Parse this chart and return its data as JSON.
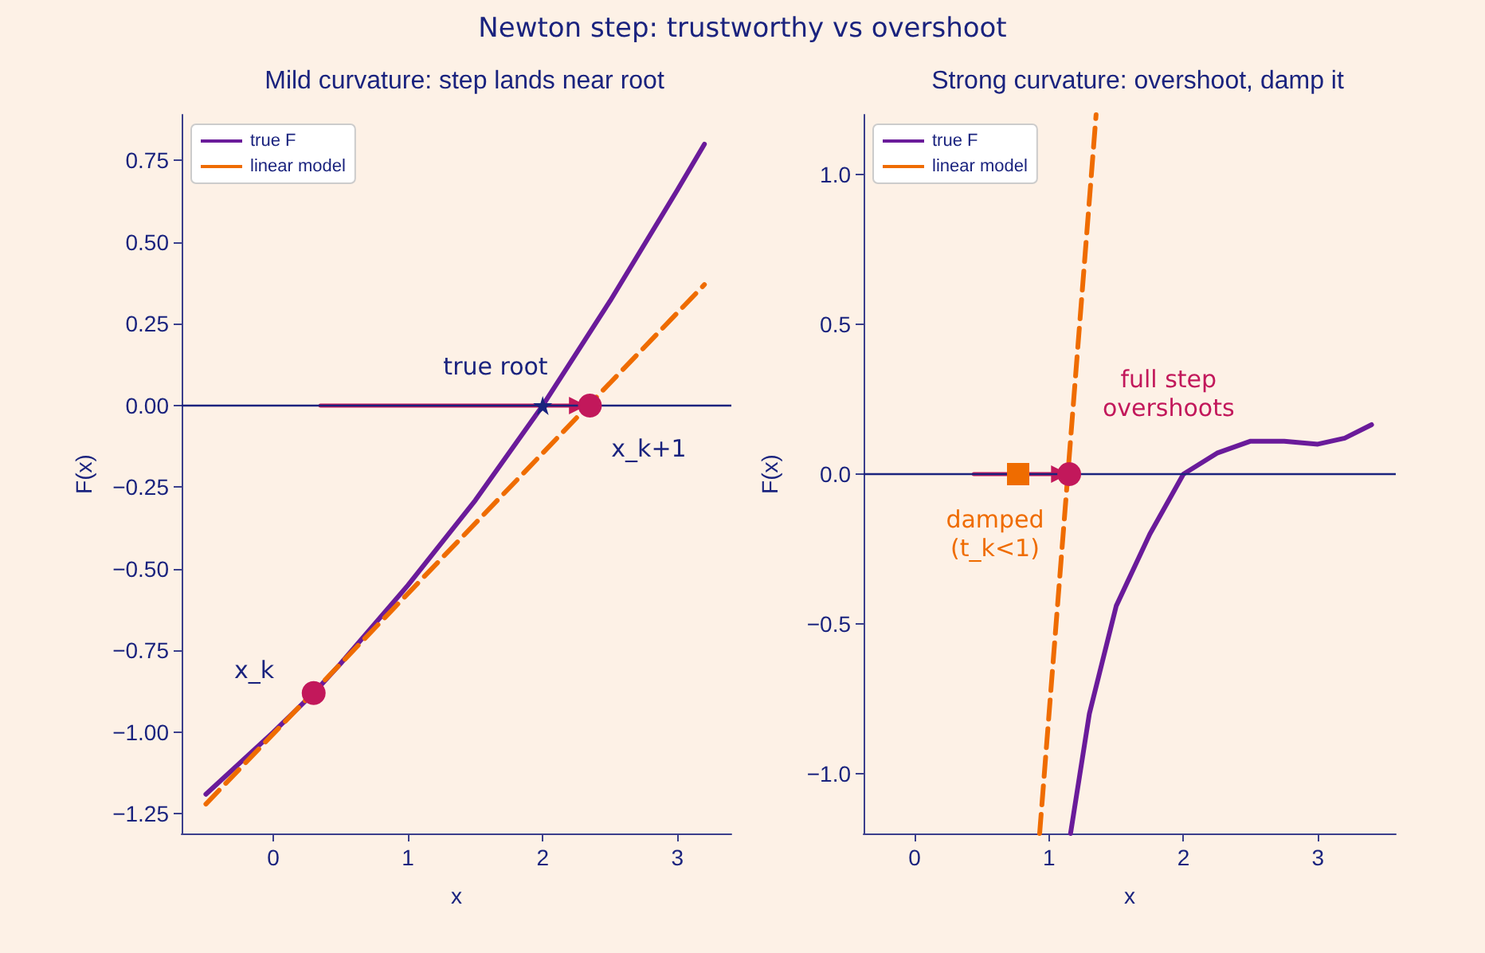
{
  "chart_data": [
    {
      "type": "line",
      "title": "Mild curvature: step lands near root",
      "xlabel": "x",
      "ylabel": "F(x)",
      "legend": "top left",
      "grid": false,
      "xlim": [
        -0.68,
        3.4
      ],
      "xticks": [
        0,
        1,
        2,
        3
      ],
      "ylim": [
        -1.31,
        0.89
      ],
      "yticks": [
        {
          "value": -1.25,
          "label": "−1.25"
        },
        {
          "value": -1,
          "label": "−1.00"
        },
        {
          "value": -0.75,
          "label": "−0.75"
        },
        {
          "value": -0.5,
          "label": "−0.50"
        },
        {
          "value": -0.25,
          "label": "−0.25"
        },
        {
          "value": 0,
          "label": "0.00"
        },
        {
          "value": 0.25,
          "label": "0.25"
        },
        {
          "value": 0.5,
          "label": "0.50"
        },
        {
          "value": 0.75,
          "label": "0.75"
        }
      ],
      "ref_lines": [
        {
          "axis": "y",
          "value": 0,
          "color": "#1a237e"
        }
      ],
      "annotations": [
        "Newton step: trustworthy vs overshoot",
        "true root",
        "x_k",
        "x_k+1"
      ],
      "series": [
        {
          "name": "true F",
          "color": "#6a1b9a",
          "line_style": "solid",
          "marker": "none",
          "x": [
            -0.5,
            0,
            0.3,
            0.5,
            1,
            1.5,
            2,
            2.5,
            3,
            3.2
          ],
          "values": [
            -1.19,
            -1.0,
            -0.88,
            -0.79,
            -0.55,
            -0.29,
            0,
            0.32,
            0.66,
            0.8
          ]
        },
        {
          "name": "linear model",
          "color": "#ef6c00",
          "line_style": "dashed",
          "marker": "none",
          "x": [
            -0.5,
            3.2
          ],
          "values": [
            -1.22,
            0.37
          ]
        },
        {
          "color": "#c2185b",
          "line_style": "solid",
          "marker": "triangle",
          "x": [
            0.35,
            2.26
          ],
          "values": [
            0,
            0
          ]
        },
        {
          "type": "scatter",
          "color": "#c2185b",
          "marker": "circle",
          "x": [
            0.3,
            2.35
          ],
          "values": [
            -0.88,
            0
          ]
        },
        {
          "type": "scatter",
          "color": "#1a237e",
          "marker": "star",
          "x": [
            2
          ],
          "values": [
            0
          ]
        }
      ]
    },
    {
      "type": "line",
      "title": "Strong curvature: overshoot, damp it",
      "xlabel": "x",
      "ylabel": "F(x)",
      "legend": "top left",
      "grid": false,
      "xlim": [
        -0.38,
        3.58
      ],
      "xticks": [
        0,
        1,
        2,
        3
      ],
      "ylim": [
        -1.2,
        1.2
      ],
      "yticks": [
        {
          "value": -1,
          "label": "−1.0"
        },
        {
          "value": -0.5,
          "label": "−0.5"
        },
        {
          "value": 0,
          "label": "0.0"
        },
        {
          "value": 0.5,
          "label": "0.5"
        },
        {
          "value": 1,
          "label": "1.0"
        }
      ],
      "ref_lines": [
        {
          "axis": "y",
          "value": 0,
          "color": "#1a237e"
        }
      ],
      "annotations": [
        "full step\novershoots",
        "damped\n(t_k<1)"
      ],
      "series": [
        {
          "name": "true F",
          "color": "#6a1b9a",
          "line_style": "solid",
          "marker": "none",
          "x": [
            1.16,
            1.3,
            1.5,
            1.75,
            2,
            2.25,
            2.5,
            2.75,
            3,
            3.2,
            3.4
          ],
          "values": [
            -1.2,
            -0.8,
            -0.44,
            -0.2,
            0,
            0.07,
            0.11,
            0.11,
            0.1,
            0.12,
            0.165
          ]
        },
        {
          "name": "linear model",
          "color": "#ef6c00",
          "line_style": "dashed",
          "marker": "none",
          "x": [
            0.93,
            1.35
          ],
          "values": [
            -1.2,
            1.2
          ]
        },
        {
          "color": "#c2185b",
          "line_style": "solid",
          "marker": "triangle",
          "x": [
            0.44,
            1.08
          ],
          "values": [
            0,
            0
          ]
        },
        {
          "type": "scatter",
          "color": "#ef6c00",
          "marker": "square",
          "x": [
            0.77
          ],
          "values": [
            0
          ]
        },
        {
          "type": "scatter",
          "color": "#c2185b",
          "marker": "circle",
          "x": [
            1.15
          ],
          "values": [
            0
          ]
        }
      ]
    }
  ]
}
